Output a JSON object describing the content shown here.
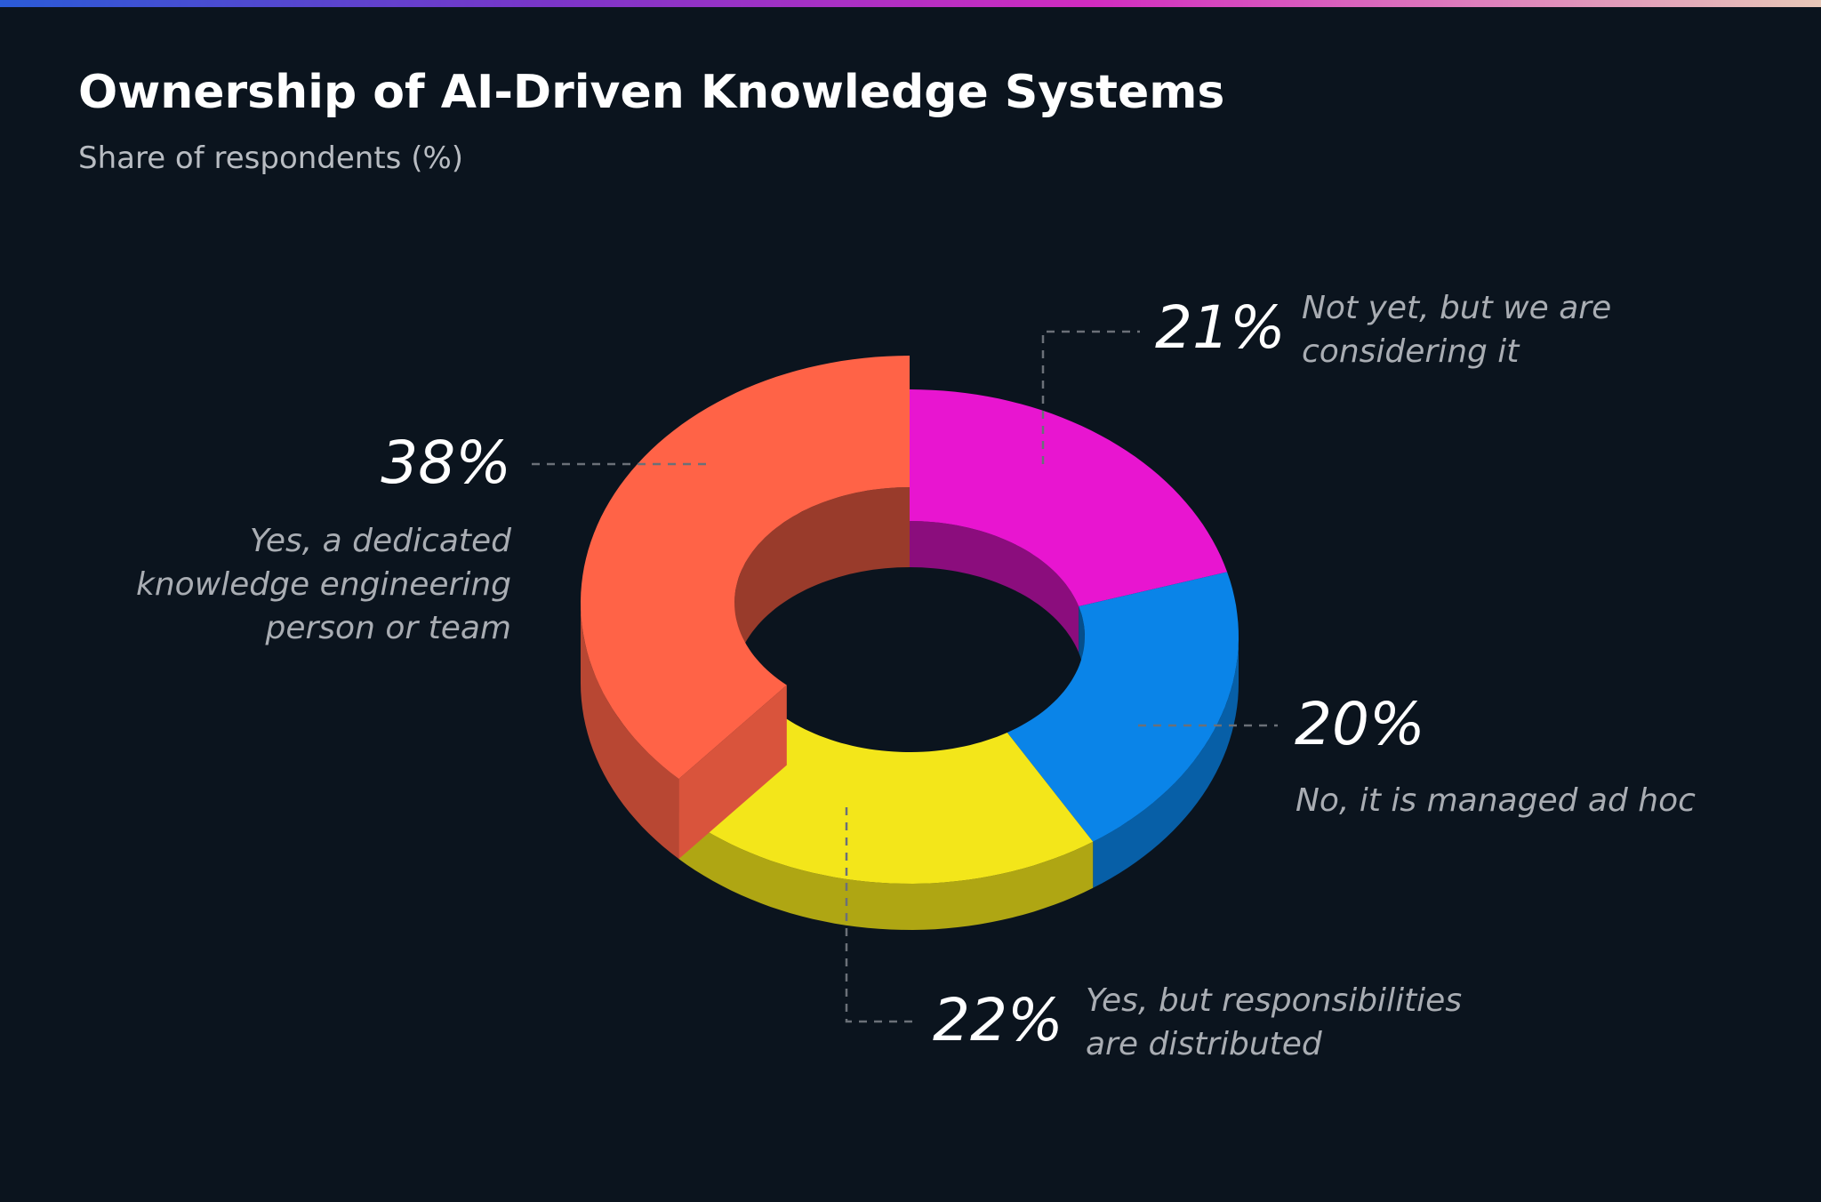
{
  "chart_data": {
    "type": "donut",
    "title": "Ownership of AI-Driven Knowledge Systems",
    "subtitle": "Share of respondents (%)",
    "categories": [
      "Not yet, but we are considering it",
      "No, it is managed ad hoc",
      "Yes, but responsibilities are distributed",
      "Yes, a dedicated knowledge engineering person or team"
    ],
    "values": [
      21,
      20,
      22,
      38
    ],
    "value_labels": [
      "21%",
      "20%",
      "22%",
      "38%"
    ],
    "colors": [
      "#e815d0",
      "#0a84e8",
      "#f3e61a",
      "#ff6347"
    ]
  }
}
